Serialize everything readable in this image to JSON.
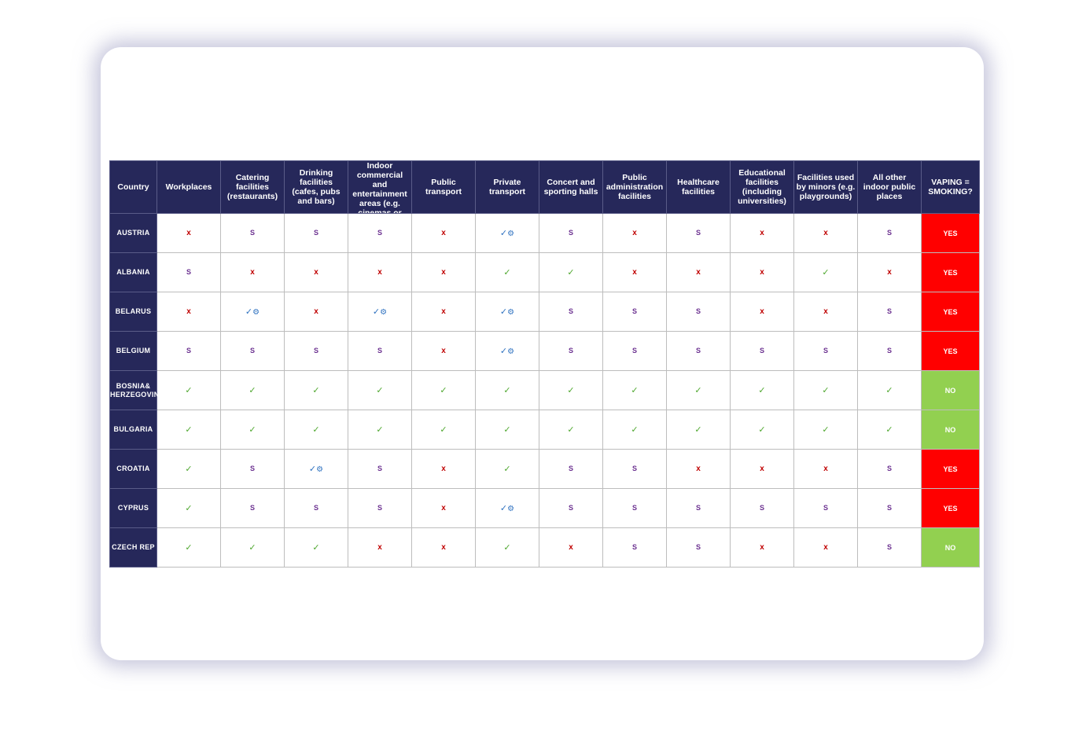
{
  "table": {
    "headers": [
      "Country",
      "Workplaces",
      "Catering facilities (restaurants)",
      "Drinking facilities (cafes, pubs and bars)",
      "Indoor commercial and entertainment areas (e.g. cinemas or",
      "Public transport",
      "Private transport",
      "Concert and sporting halls",
      "Public administration facilities",
      "Healthcare facilities",
      "Educational facilities (including universities)",
      "Facilities used by minors (e.g. playgrounds)",
      "All other indoor public places",
      "VAPING = SMOKING?"
    ],
    "symbols": {
      "X": "x",
      "S": "S",
      "C": "✓",
      "P": "✓",
      "gear": "⚙"
    },
    "colors": {
      "header_bg": "#26285a",
      "ban": "#c00000",
      "smoking_room": "#6a2f8f",
      "allowed": "#4ea72e",
      "partial": "#2f72c0",
      "yes_bg": "#ff0000",
      "no_bg": "#92d050"
    },
    "rows": [
      {
        "country": "AUSTRIA",
        "cells": [
          "X",
          "S",
          "S",
          "S",
          "X",
          "P",
          "S",
          "X",
          "S",
          "X",
          "X",
          "S"
        ],
        "vaping": "YES"
      },
      {
        "country": "ALBANIA",
        "cells": [
          "S",
          "X",
          "X",
          "X",
          "X",
          "C",
          "C",
          "X",
          "X",
          "X",
          "C",
          "X"
        ],
        "vaping": "YES"
      },
      {
        "country": "BELARUS",
        "cells": [
          "X",
          "P",
          "X",
          "P",
          "X",
          "P",
          "S",
          "S",
          "S",
          "X",
          "X",
          "S"
        ],
        "vaping": "YES"
      },
      {
        "country": "BELGIUM",
        "cells": [
          "S",
          "S",
          "S",
          "S",
          "X",
          "P",
          "S",
          "S",
          "S",
          "S",
          "S",
          "S"
        ],
        "vaping": "YES"
      },
      {
        "country": "BOSNIA& HERZEGOVINA",
        "cells": [
          "C",
          "C",
          "C",
          "C",
          "C",
          "C",
          "C",
          "C",
          "C",
          "C",
          "C",
          "C"
        ],
        "vaping": "NO"
      },
      {
        "country": "BULGARIA",
        "cells": [
          "C",
          "C",
          "C",
          "C",
          "C",
          "C",
          "C",
          "C",
          "C",
          "C",
          "C",
          "C"
        ],
        "vaping": "NO"
      },
      {
        "country": "CROATIA",
        "cells": [
          "C",
          "S",
          "P",
          "S",
          "X",
          "C",
          "S",
          "S",
          "X",
          "X",
          "X",
          "S"
        ],
        "vaping": "YES"
      },
      {
        "country": "CYPRUS",
        "cells": [
          "C",
          "S",
          "S",
          "S",
          "X",
          "P",
          "S",
          "S",
          "S",
          "S",
          "S",
          "S"
        ],
        "vaping": "YES"
      },
      {
        "country": "CZECH REP",
        "cells": [
          "C",
          "C",
          "C",
          "X",
          "X",
          "C",
          "X",
          "S",
          "S",
          "X",
          "X",
          "S"
        ],
        "vaping": "NO"
      }
    ]
  }
}
